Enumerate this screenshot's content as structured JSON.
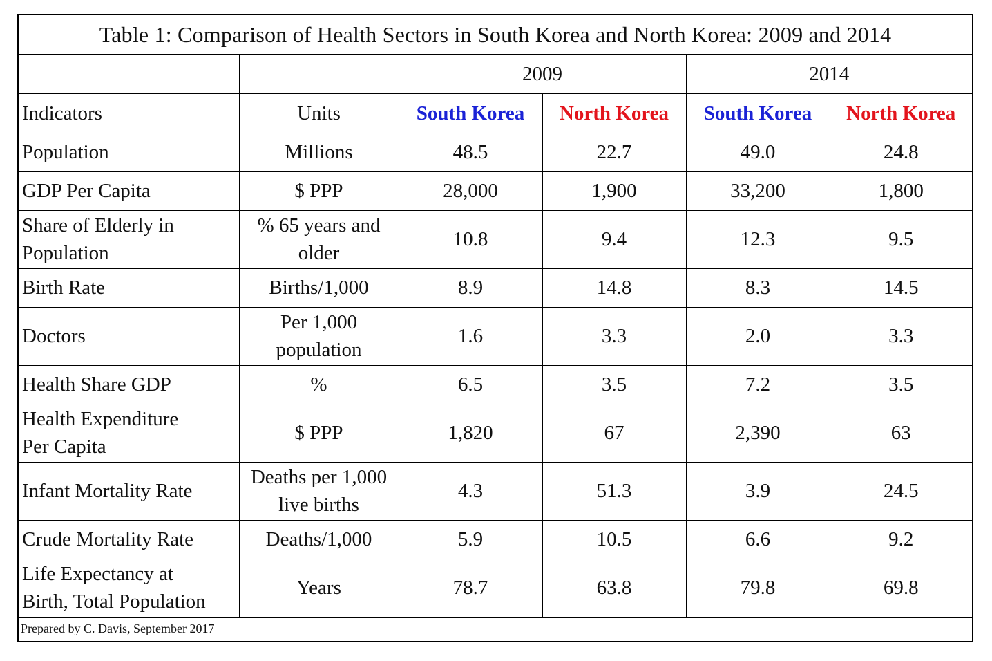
{
  "title": "Table 1: Comparison of Health Sectors in South Korea and North Korea: 2009 and 2014",
  "years": [
    "2009",
    "2014"
  ],
  "header": {
    "indicators": "Indicators",
    "units": "Units",
    "south_korea": "South Korea",
    "north_korea": "North Korea"
  },
  "colors": {
    "south_korea": "#1a22d6",
    "north_korea": "#e3141c",
    "border": "#000000"
  },
  "rows": [
    {
      "indicator": [
        "Population"
      ],
      "unit": [
        "Millions"
      ],
      "values": [
        "48.5",
        "22.7",
        "49.0",
        "24.8"
      ]
    },
    {
      "indicator": [
        "GDP Per Capita"
      ],
      "unit": [
        "$ PPP"
      ],
      "values": [
        "28,000",
        "1,900",
        "33,200",
        "1,800"
      ]
    },
    {
      "indicator": [
        "Share of Elderly in",
        "Population"
      ],
      "unit": [
        "% 65 years and",
        "older"
      ],
      "values": [
        "10.8",
        "9.4",
        "12.3",
        "9.5"
      ]
    },
    {
      "indicator": [
        "Birth Rate"
      ],
      "unit": [
        "Births/1,000"
      ],
      "values": [
        "8.9",
        "14.8",
        "8.3",
        "14.5"
      ]
    },
    {
      "indicator": [
        "Doctors"
      ],
      "unit": [
        "Per 1,000",
        "population"
      ],
      "values": [
        "1.6",
        "3.3",
        "2.0",
        "3.3"
      ]
    },
    {
      "indicator": [
        "Health Share GDP"
      ],
      "unit": [
        "%"
      ],
      "values": [
        "6.5",
        "3.5",
        "7.2",
        "3.5"
      ]
    },
    {
      "indicator": [
        "Health Expenditure",
        "Per Capita"
      ],
      "unit": [
        "$ PPP"
      ],
      "values": [
        "1,820",
        "67",
        "2,390",
        "63"
      ]
    },
    {
      "indicator": [
        "Infant Mortality Rate"
      ],
      "unit": [
        "Deaths per 1,000",
        "live births"
      ],
      "values": [
        "4.3",
        "51.3",
        "3.9",
        "24.5"
      ]
    },
    {
      "indicator": [
        "Crude Mortality Rate"
      ],
      "unit": [
        "Deaths/1,000"
      ],
      "values": [
        "5.9",
        "10.5",
        "6.6",
        "9.2"
      ]
    },
    {
      "indicator": [
        "Life Expectancy at",
        "Birth, Total Population"
      ],
      "unit": [
        "Years"
      ],
      "values": [
        "78.7",
        "63.8",
        "79.8",
        "69.8"
      ]
    }
  ],
  "footnote": "Prepared by C. Davis, September 2017"
}
